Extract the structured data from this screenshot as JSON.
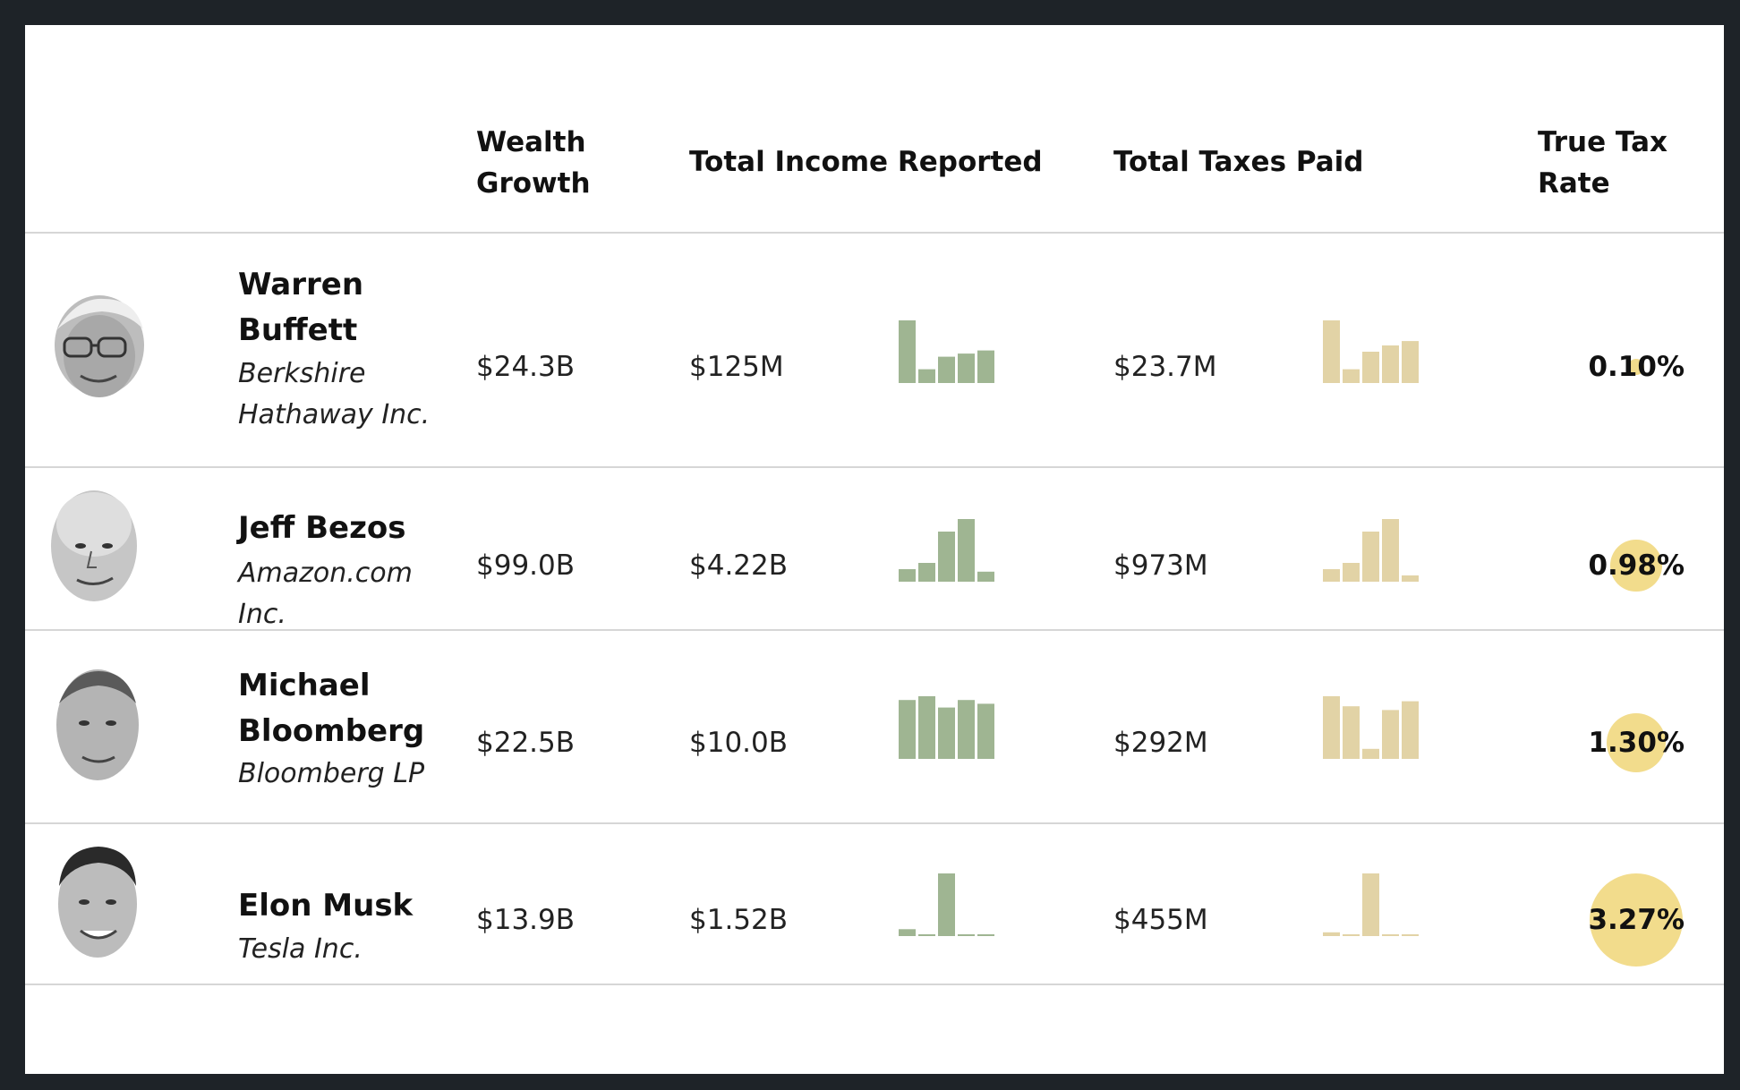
{
  "headers": {
    "wealth_growth": "Wealth Growth",
    "total_income": "Total Income Reported",
    "total_taxes": "Total Taxes Paid",
    "true_tax_rate": "True Tax Rate"
  },
  "colors": {
    "income_bar": "#9fb592",
    "tax_bar": "#e2d3a6",
    "rate_circle": "#f2dc8c",
    "rule": "#d6d6d6"
  },
  "chart_data": {
    "type": "table",
    "columns": [
      "Wealth Growth",
      "Total Income Reported",
      "Total Taxes Paid",
      "True Tax Rate"
    ],
    "rows": [
      {
        "name": "Warren Buffett",
        "company": "Berkshire Hathaway Inc.",
        "wealth_growth": "$24.3B",
        "total_income": "$125M",
        "total_taxes": "$23.7M",
        "true_tax_rate": "0.10%",
        "rate_value": 0.1,
        "income_sparkline": [
          1.0,
          0.22,
          0.42,
          0.47,
          0.52
        ],
        "tax_sparkline": [
          1.0,
          0.22,
          0.5,
          0.6,
          0.67
        ]
      },
      {
        "name": "Jeff Bezos",
        "company": "Amazon.com Inc.",
        "wealth_growth": "$99.0B",
        "total_income": "$4.22B",
        "total_taxes": "$973M",
        "true_tax_rate": "0.98%",
        "rate_value": 0.98,
        "income_sparkline": [
          0.2,
          0.3,
          0.8,
          1.0,
          0.16
        ],
        "tax_sparkline": [
          0.2,
          0.3,
          0.8,
          1.0,
          0.1
        ]
      },
      {
        "name": "Michael Bloomberg",
        "company": "Bloomberg LP",
        "wealth_growth": "$22.5B",
        "total_income": "$10.0B",
        "total_taxes": "$292M",
        "true_tax_rate": "1.30%",
        "rate_value": 1.3,
        "income_sparkline": [
          0.94,
          1.0,
          0.82,
          0.94,
          0.88
        ],
        "tax_sparkline": [
          1.0,
          0.84,
          0.16,
          0.78,
          0.92
        ]
      },
      {
        "name": "Elon Musk",
        "company": "Tesla Inc.",
        "wealth_growth": "$13.9B",
        "total_income": "$1.52B",
        "total_taxes": "$455M",
        "true_tax_rate": "3.27%",
        "rate_value": 3.27,
        "income_sparkline": [
          0.11,
          0.02,
          1.0,
          0.02,
          0.02
        ],
        "tax_sparkline": [
          0.06,
          0.02,
          1.0,
          0.02,
          0.02
        ]
      }
    ]
  }
}
